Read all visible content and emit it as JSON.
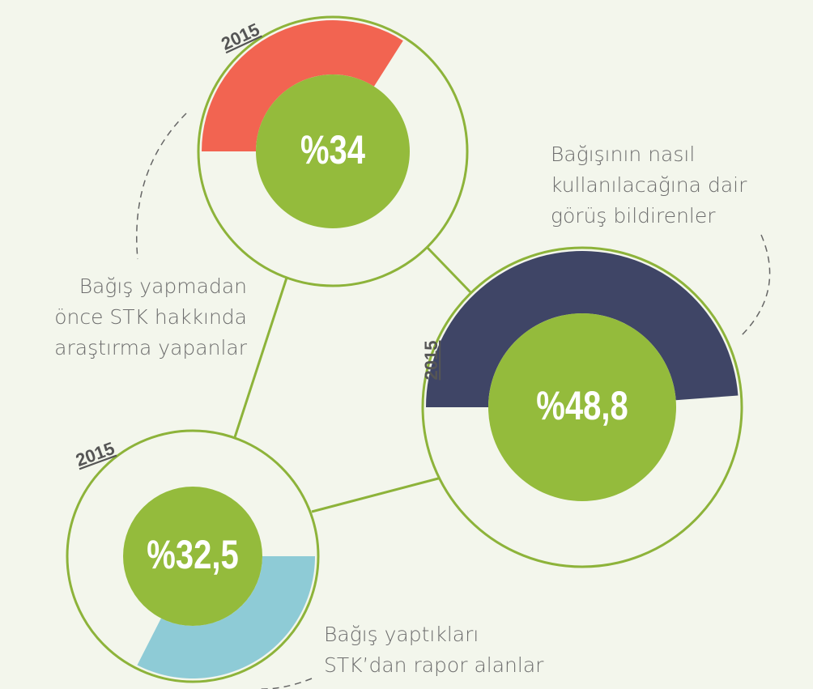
{
  "chart_data": [
    {
      "type": "donut",
      "subtitle": "2015",
      "title": [
        "Bağış yapmadan",
        "önce STK hakkında",
        "araştırma yapanlar"
      ],
      "values": [
        34
      ],
      "value_labels": [
        "%34"
      ],
      "color": "#f26451"
    },
    {
      "type": "donut",
      "subtitle": "2015",
      "title": [
        "Bağışının nasıl",
        "kullanılacağına dair",
        "görüş bildirenler"
      ],
      "values": [
        48.8
      ],
      "value_labels": [
        "%48,8"
      ],
      "color": "#3f4566"
    },
    {
      "type": "donut",
      "subtitle": "2015",
      "title": [
        "Bağış yaptıkları",
        "STK’dan rapor alanlar"
      ],
      "values": [
        32.5
      ],
      "value_labels": [
        "%32,5"
      ],
      "color": "#8ecbd6"
    }
  ]
}
